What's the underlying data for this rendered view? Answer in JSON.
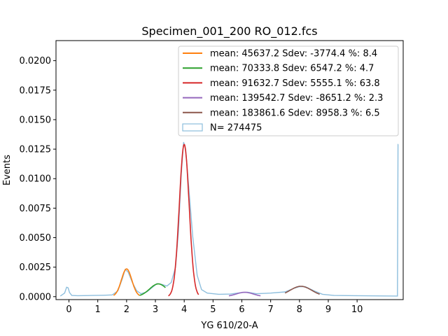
{
  "chart_data": {
    "type": "line",
    "title": "Specimen_001_200 RO_012.fcs",
    "xlabel": "YG 610/20-A",
    "ylabel": "Events",
    "xlim": [
      -0.45,
      11.6
    ],
    "ylim": [
      -0.00025,
      0.0217
    ],
    "xticks": [
      0,
      1,
      2,
      3,
      4,
      5,
      6,
      7,
      8,
      9,
      10
    ],
    "yticks": [
      0.0,
      0.0025,
      0.005,
      0.0075,
      0.01,
      0.0125,
      0.015,
      0.0175,
      0.02
    ],
    "ytick_labels": [
      "0.0000",
      "0.0025",
      "0.0050",
      "0.0075",
      "0.0100",
      "0.0125",
      "0.0150",
      "0.0175",
      "0.0200"
    ],
    "legend_position": "top-right",
    "histogram": {
      "label": " N= 274475",
      "color": "#8dbedd",
      "points": [
        [
          -0.3,
          5e-05
        ],
        [
          -0.15,
          0.0003
        ],
        [
          -0.08,
          0.0008
        ],
        [
          -0.03,
          0.00075
        ],
        [
          0.02,
          0.00035
        ],
        [
          0.1,
          0.0001
        ],
        [
          0.3,
          8e-05
        ],
        [
          0.8,
          0.0001
        ],
        [
          1.2,
          0.00012
        ],
        [
          1.5,
          0.00015
        ],
        [
          1.7,
          0.0005
        ],
        [
          1.85,
          0.0015
        ],
        [
          1.95,
          0.0023
        ],
        [
          2.05,
          0.0021
        ],
        [
          2.2,
          0.0012
        ],
        [
          2.35,
          0.0005
        ],
        [
          2.5,
          0.00025
        ],
        [
          2.7,
          0.0004
        ],
        [
          2.9,
          0.0008
        ],
        [
          3.05,
          0.0011
        ],
        [
          3.2,
          0.00105
        ],
        [
          3.4,
          0.0009
        ],
        [
          3.55,
          0.0012
        ],
        [
          3.7,
          0.0025
        ],
        [
          3.8,
          0.0055
        ],
        [
          3.9,
          0.0105
        ],
        [
          3.98,
          0.0131
        ],
        [
          4.05,
          0.0125
        ],
        [
          4.15,
          0.0095
        ],
        [
          4.3,
          0.005
        ],
        [
          4.45,
          0.0018
        ],
        [
          4.6,
          0.0006
        ],
        [
          4.8,
          0.0003
        ],
        [
          5.2,
          0.0002
        ],
        [
          5.6,
          0.00022
        ],
        [
          6.0,
          0.00035
        ],
        [
          6.2,
          0.00038
        ],
        [
          6.5,
          0.00025
        ],
        [
          7.0,
          0.0003
        ],
        [
          7.5,
          0.0004
        ],
        [
          7.8,
          0.0007
        ],
        [
          8.0,
          0.00085
        ],
        [
          8.2,
          0.00085
        ],
        [
          8.5,
          0.0005
        ],
        [
          8.8,
          0.0002
        ],
        [
          9.2,
          0.0001
        ],
        [
          10.0,
          8e-05
        ],
        [
          11.0,
          6e-05
        ],
        [
          11.4,
          5e-05
        ],
        [
          11.42,
          0.0129
        ],
        [
          11.43,
          0.0129
        ]
      ]
    },
    "series": [
      {
        "name": "mean: 45637.2 Sdev: -3774.4 %: 8.4",
        "color": "#ff7f0e",
        "mu": 2.0,
        "sigma": 0.18,
        "amp": 0.00235,
        "range": [
          1.55,
          2.45
        ]
      },
      {
        "name": "mean: 70333.8 Sdev: 6547.2 %: 4.7",
        "color": "#2ca02c",
        "mu": 3.1,
        "sigma": 0.3,
        "amp": 0.00108,
        "range": [
          2.45,
          3.35
        ]
      },
      {
        "name": "mean: 91632.7 Sdev: 5555.1 %: 63.8",
        "color": "#d62728",
        "mu": 4.0,
        "sigma": 0.17,
        "amp": 0.0129,
        "range": [
          3.45,
          4.5
        ]
      },
      {
        "name": "mean: 139542.7 Sdev: -8651.2 %: 2.3",
        "color": "#9467bd",
        "mu": 6.1,
        "sigma": 0.3,
        "amp": 0.00037,
        "range": [
          5.55,
          6.65
        ]
      },
      {
        "name": "mean: 183861.6 Sdev: 8958.3 %: 6.5",
        "color": "#8c564b",
        "mu": 8.05,
        "sigma": 0.38,
        "amp": 0.00088,
        "range": [
          7.5,
          8.7
        ]
      }
    ]
  }
}
